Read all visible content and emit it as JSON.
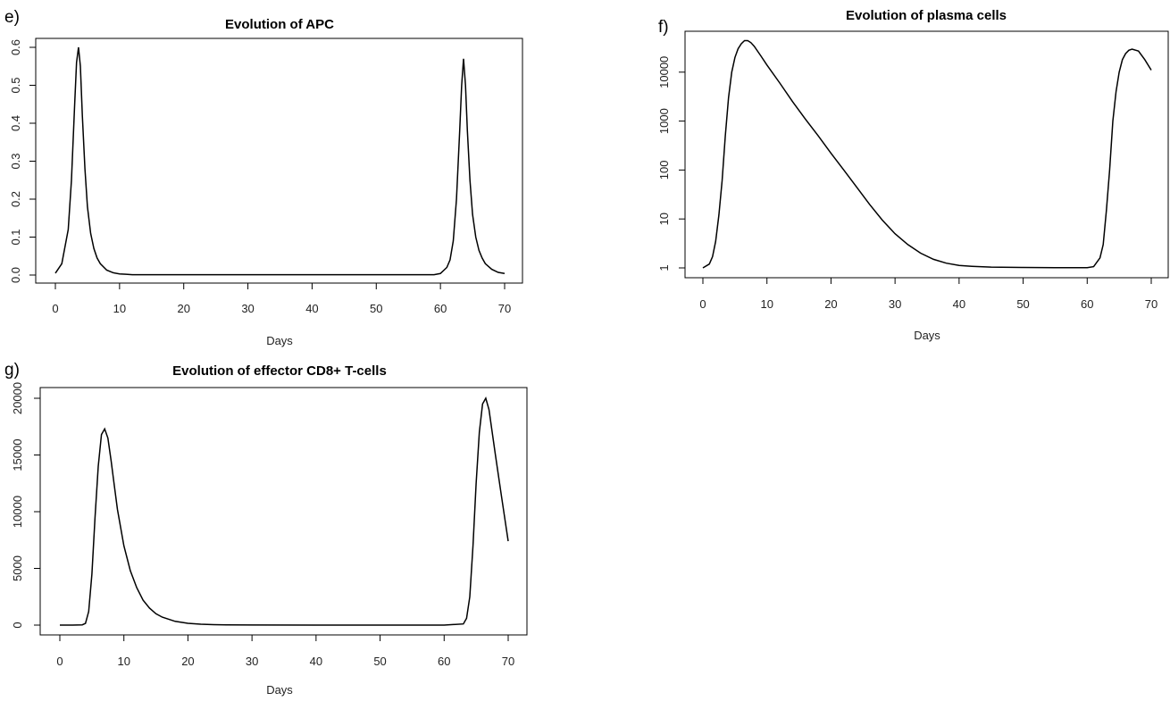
{
  "chart_data": [
    {
      "panel": "e)",
      "type": "line",
      "title": "Evolution of APC",
      "xlabel": "Days",
      "ylabel": "",
      "xlim": [
        0,
        70
      ],
      "ylim": [
        0,
        0.6
      ],
      "x_ticks": [
        0,
        10,
        20,
        30,
        40,
        50,
        60,
        70
      ],
      "y_ticks": [
        0.0,
        0.1,
        0.2,
        0.3,
        0.4,
        0.5,
        0.6
      ],
      "y_tick_labels": [
        "0.0",
        "0.1",
        "0.2",
        "0.3",
        "0.4",
        "0.5",
        "0.6"
      ],
      "log_y": false,
      "grid": false,
      "series": [
        {
          "x": [
            0,
            1,
            2,
            2.5,
            3,
            3.3,
            3.6,
            3.9,
            4.2,
            4.6,
            5,
            5.5,
            6,
            6.5,
            7,
            8,
            9,
            10,
            11,
            12,
            20,
            30,
            40,
            50,
            59,
            60,
            61,
            61.5,
            62,
            62.5,
            63,
            63.3,
            63.6,
            63.9,
            64.2,
            64.6,
            65,
            65.5,
            66,
            66.5,
            67,
            68,
            69,
            70
          ],
          "y": [
            0.005,
            0.03,
            0.12,
            0.25,
            0.45,
            0.56,
            0.6,
            0.55,
            0.42,
            0.28,
            0.18,
            0.11,
            0.07,
            0.045,
            0.03,
            0.013,
            0.006,
            0.003,
            0.002,
            0.001,
            0.001,
            0.001,
            0.001,
            0.001,
            0.001,
            0.004,
            0.02,
            0.04,
            0.09,
            0.2,
            0.38,
            0.5,
            0.57,
            0.5,
            0.38,
            0.25,
            0.16,
            0.1,
            0.065,
            0.045,
            0.03,
            0.015,
            0.007,
            0.004
          ]
        }
      ]
    },
    {
      "panel": "f)",
      "type": "line",
      "title": "Evolution of plasma cells",
      "xlabel": "Days",
      "ylabel": "",
      "xlim": [
        0,
        70
      ],
      "ylim": [
        1,
        45000
      ],
      "x_ticks": [
        0,
        10,
        20,
        30,
        40,
        50,
        60,
        70
      ],
      "y_ticks": [
        1,
        10,
        100,
        1000,
        10000
      ],
      "y_tick_labels": [
        "1",
        "10",
        "100",
        "1000",
        "10000"
      ],
      "log_y": true,
      "grid": false,
      "series": [
        {
          "x": [
            0,
            1,
            1.5,
            2,
            2.5,
            3,
            3.5,
            4,
            4.5,
            5,
            5.5,
            6,
            6.5,
            7,
            7.5,
            8,
            9,
            10,
            12,
            14,
            16,
            18,
            20,
            22,
            24,
            26,
            28,
            30,
            32,
            34,
            36,
            38,
            40,
            42,
            45,
            50,
            55,
            60,
            61,
            62,
            62.5,
            63,
            63.5,
            64,
            64.5,
            65,
            65.5,
            66,
            66.5,
            67,
            68,
            69,
            70
          ],
          "y": [
            1,
            1.2,
            1.7,
            3.5,
            12,
            60,
            500,
            3000,
            10000,
            20000,
            30000,
            38000,
            44000,
            44000,
            40000,
            34000,
            22000,
            14000,
            6000,
            2500,
            1100,
            500,
            220,
            100,
            45,
            20,
            9.5,
            5,
            3,
            2,
            1.5,
            1.25,
            1.12,
            1.08,
            1.04,
            1.02,
            1.01,
            1.01,
            1.06,
            1.6,
            3,
            15,
            100,
            1000,
            4000,
            10000,
            18000,
            24000,
            28000,
            29500,
            27000,
            18000,
            11000
          ]
        }
      ]
    },
    {
      "panel": "g)",
      "type": "line",
      "title": "Evolution of effector CD8+ T-cells",
      "xlabel": "Days",
      "ylabel": "",
      "xlim": [
        0,
        70
      ],
      "ylim": [
        0,
        20000
      ],
      "x_ticks": [
        0,
        10,
        20,
        30,
        40,
        50,
        60,
        70
      ],
      "y_ticks": [
        0,
        5000,
        10000,
        15000,
        20000
      ],
      "y_tick_labels": [
        "0",
        "5000",
        "10000",
        "15000",
        "20000"
      ],
      "log_y": false,
      "grid": false,
      "series": [
        {
          "x": [
            0,
            2,
            3.5,
            4,
            4.5,
            5,
            5.5,
            6,
            6.5,
            7,
            7.5,
            8,
            8.5,
            9,
            10,
            11,
            12,
            13,
            14,
            15,
            16,
            18,
            20,
            22,
            24,
            26,
            30,
            40,
            50,
            60,
            63,
            63.5,
            64,
            64.5,
            65,
            65.5,
            66,
            66.5,
            67,
            67.5,
            68,
            69,
            70
          ],
          "y": [
            0,
            0,
            20,
            150,
            1200,
            4500,
            9500,
            14000,
            16800,
            17300,
            16500,
            14500,
            12300,
            10200,
            7000,
            4800,
            3300,
            2200,
            1500,
            1000,
            700,
            330,
            160,
            80,
            40,
            20,
            5,
            0,
            0,
            0,
            100,
            600,
            2500,
            7000,
            12500,
            17000,
            19500,
            20000,
            19000,
            17000,
            15000,
            11200,
            7400
          ]
        }
      ]
    }
  ]
}
